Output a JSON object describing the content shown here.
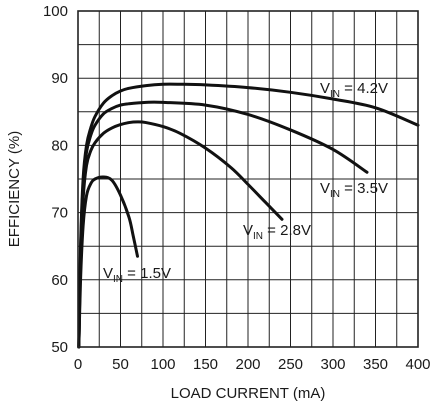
{
  "chart_data": {
    "type": "line",
    "xlabel": "LOAD CURRENT (mA)",
    "ylabel": "EFFICIENCY (%)",
    "xlim": [
      0,
      400
    ],
    "ylim": [
      50,
      100
    ],
    "xticks": [
      0,
      50,
      100,
      150,
      200,
      250,
      300,
      350,
      400
    ],
    "yticks": [
      50,
      60,
      70,
      80,
      90,
      100
    ],
    "minor_x_grid": 25,
    "minor_y_grid": 5,
    "grid": true,
    "series": [
      {
        "name": "VIN = 4.2V",
        "label_main": "V",
        "label_sub": "IN",
        "label_rest": " = 4.2V",
        "x": [
          1,
          3,
          6,
          10,
          15,
          20,
          30,
          40,
          50,
          60,
          80,
          100,
          120,
          150,
          200,
          250,
          300,
          350,
          400
        ],
        "y": [
          50,
          65,
          75,
          80,
          82.6,
          84.3,
          86.3,
          87.4,
          88.1,
          88.5,
          88.9,
          89.1,
          89.1,
          89,
          88.6,
          87.9,
          86.9,
          85.6,
          83
        ]
      },
      {
        "name": "VIN = 3.5V",
        "label_main": "V",
        "label_sub": "IN",
        "label_rest": " = 3.5V",
        "x": [
          1,
          3,
          6,
          10,
          15,
          20,
          30,
          40,
          50,
          60,
          80,
          100,
          150,
          200,
          250,
          300,
          340
        ],
        "y": [
          50,
          64,
          74,
          79,
          81.5,
          83,
          84.7,
          85.5,
          86,
          86.2,
          86.4,
          86.4,
          86,
          84.6,
          82.3,
          79.4,
          76
        ]
      },
      {
        "name": "VIN = 2.8V",
        "label_main": "V",
        "label_sub": "IN",
        "label_rest": " = 2.8V",
        "x": [
          1,
          3,
          6,
          10,
          15,
          20,
          30,
          40,
          50,
          60,
          70,
          80,
          100,
          120,
          150,
          180,
          200,
          220,
          240
        ],
        "y": [
          50,
          63,
          72,
          77,
          79.2,
          80.4,
          81.8,
          82.6,
          83.1,
          83.4,
          83.5,
          83.4,
          82.8,
          81.8,
          79.6,
          76.7,
          74.2,
          71.6,
          69
        ]
      },
      {
        "name": "VIN = 1.5V",
        "label_main": "V",
        "label_sub": "IN",
        "label_rest": " = 1.5V",
        "x": [
          1,
          3,
          6,
          10,
          15,
          20,
          30,
          40,
          50,
          60,
          65,
          70
        ],
        "y": [
          50,
          60,
          68,
          72.5,
          74.3,
          75,
          75.3,
          74.8,
          72.6,
          69.3,
          66.5,
          63.5
        ]
      }
    ]
  }
}
